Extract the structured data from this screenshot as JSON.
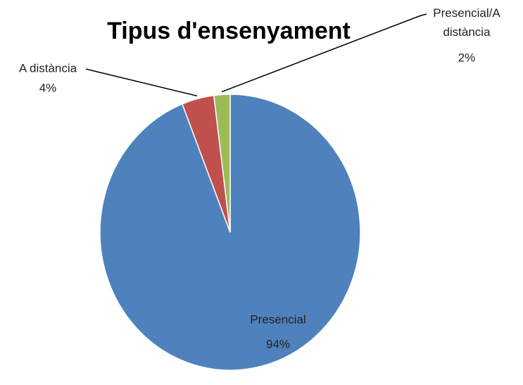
{
  "chart_data": {
    "type": "pie",
    "title": "Tipus d'ensenyament",
    "categories": [
      "Presencial",
      "A distància",
      "Presencial/A distància"
    ],
    "values": [
      94,
      4,
      2
    ],
    "value_labels": [
      "94%",
      "4%",
      "2%"
    ],
    "colors": [
      "#4f81bd",
      "#c0504d",
      "#9bbb59"
    ]
  }
}
